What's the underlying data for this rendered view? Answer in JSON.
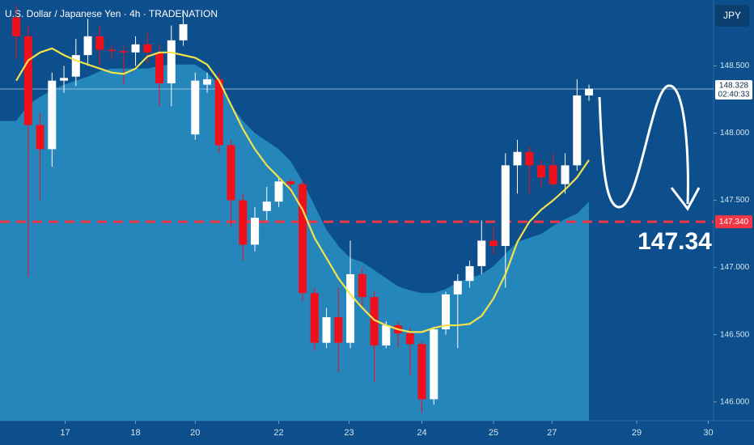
{
  "chart_data": {
    "type": "candlestick",
    "title": "U.S. Dollar / Japanese Yen · 4h · TRADENATION",
    "currency_button": "JPY",
    "open": [
      148.86,
      148.72,
      148.06,
      147.88,
      148.39,
      148.42,
      148.58,
      148.72,
      148.62,
      148.61,
      148.6,
      148.66,
      148.6,
      148.37,
      148.69,
      147.99,
      148.36,
      148.4,
      147.91,
      147.5,
      147.17,
      147.42,
      147.49,
      147.64,
      147.62,
      146.81,
      146.44,
      146.63,
      146.44,
      146.95,
      146.78,
      146.42,
      146.57,
      146.51,
      146.43,
      146.02,
      146.54,
      146.8,
      146.9,
      147.01,
      147.2,
      147.16,
      147.76,
      147.86,
      147.76,
      147.76,
      147.62,
      147.76,
      148.28
    ],
    "high": [
      148.95,
      148.8,
      148.15,
      148.45,
      148.5,
      148.7,
      148.85,
      148.8,
      148.65,
      148.65,
      148.72,
      148.75,
      148.66,
      148.8,
      148.9,
      148.45,
      148.45,
      148.45,
      147.95,
      147.55,
      147.45,
      147.6,
      147.66,
      147.66,
      147.65,
      146.85,
      146.7,
      146.85,
      147.2,
      147.0,
      146.82,
      146.6,
      146.6,
      146.55,
      146.45,
      146.56,
      146.82,
      146.95,
      147.05,
      147.35,
      147.3,
      147.85,
      147.95,
      147.9,
      147.8,
      147.85,
      147.85,
      148.4,
      148.36
    ],
    "low": [
      148.55,
      146.93,
      147.5,
      147.75,
      148.3,
      148.35,
      148.5,
      148.5,
      148.55,
      148.36,
      148.5,
      148.52,
      148.2,
      148.2,
      148.65,
      147.95,
      148.3,
      147.85,
      147.3,
      147.05,
      147.12,
      147.35,
      147.45,
      147.55,
      146.75,
      146.38,
      146.4,
      146.22,
      146.4,
      146.7,
      146.15,
      146.4,
      146.4,
      146.2,
      145.92,
      145.98,
      146.5,
      146.4,
      146.85,
      146.95,
      147.1,
      146.85,
      147.55,
      147.55,
      147.6,
      147.6,
      147.55,
      147.72,
      148.24
    ],
    "close": [
      148.72,
      148.06,
      147.88,
      148.39,
      148.41,
      148.58,
      148.72,
      148.62,
      148.61,
      148.6,
      148.66,
      148.6,
      148.37,
      148.69,
      148.81,
      148.39,
      148.4,
      147.91,
      147.5,
      147.17,
      147.37,
      147.49,
      147.64,
      147.62,
      146.81,
      146.44,
      146.63,
      146.44,
      146.95,
      146.78,
      146.42,
      146.57,
      146.51,
      146.43,
      146.02,
      146.54,
      146.8,
      146.9,
      147.01,
      147.2,
      147.16,
      147.76,
      147.86,
      147.76,
      147.67,
      147.62,
      147.76,
      148.28,
      148.33
    ],
    "up_color": "#ffffff",
    "down_color": "#f0101c",
    "ma_line": {
      "color": "#f2e24b",
      "values": [
        148.39,
        148.54,
        148.6,
        148.63,
        148.58,
        148.54,
        148.51,
        148.48,
        148.45,
        148.44,
        148.48,
        148.57,
        148.6,
        148.6,
        148.58,
        148.56,
        148.51,
        148.39,
        148.21,
        148.03,
        147.88,
        147.76,
        147.67,
        147.58,
        147.43,
        147.22,
        147.07,
        146.92,
        146.8,
        146.7,
        146.61,
        146.57,
        146.54,
        146.52,
        146.52,
        146.55,
        146.57,
        146.57,
        146.58,
        146.64,
        146.77,
        146.95,
        147.19,
        147.34,
        147.43,
        147.5,
        147.58,
        147.67,
        147.8
      ]
    },
    "band_area": {
      "color": "#2a8fc4",
      "values": [
        148.09,
        148.21,
        148.27,
        148.32,
        148.36,
        148.39,
        148.42,
        148.46,
        148.48,
        148.48,
        148.48,
        148.48,
        148.5,
        148.51,
        148.51,
        148.51,
        148.45,
        148.36,
        148.21,
        148.09,
        148.0,
        147.94,
        147.88,
        147.79,
        147.64,
        147.46,
        147.28,
        147.16,
        147.07,
        147.04,
        146.98,
        146.92,
        146.86,
        146.83,
        146.81,
        146.81,
        146.84,
        146.89,
        146.92,
        146.95,
        147.01,
        147.1,
        147.19,
        147.22,
        147.25,
        147.31,
        147.36,
        147.4,
        147.49
      ]
    },
    "xlim": [
      -1.36,
      58.44
    ],
    "xticks": [
      {
        "value": 4.1,
        "label": "17"
      },
      {
        "value": 10.0,
        "label": "18"
      },
      {
        "value": 15.0,
        "label": "20"
      },
      {
        "value": 22.0,
        "label": "22"
      },
      {
        "value": 27.9,
        "label": "23"
      },
      {
        "value": 34.0,
        "label": "24"
      },
      {
        "value": 40.0,
        "label": "25"
      },
      {
        "value": 44.9,
        "label": "27"
      },
      {
        "value": 52.0,
        "label": "29"
      },
      {
        "value": 58.0,
        "label": "30"
      }
    ],
    "ylim": [
      145.86,
      148.99
    ],
    "yticks": [
      {
        "value": 146.0,
        "label": "146.000"
      },
      {
        "value": 146.5,
        "label": "146.500"
      },
      {
        "value": 147.0,
        "label": "147.000"
      },
      {
        "value": 147.5,
        "label": "147.500"
      },
      {
        "value": 148.0,
        "label": "148.000"
      },
      {
        "value": 148.5,
        "label": "148.500"
      }
    ],
    "last_price": 148.328,
    "countdown": "02:40:33",
    "target": {
      "value": 147.34,
      "label": "147.340",
      "color": "#f23645"
    },
    "annotation": "147.34"
  }
}
